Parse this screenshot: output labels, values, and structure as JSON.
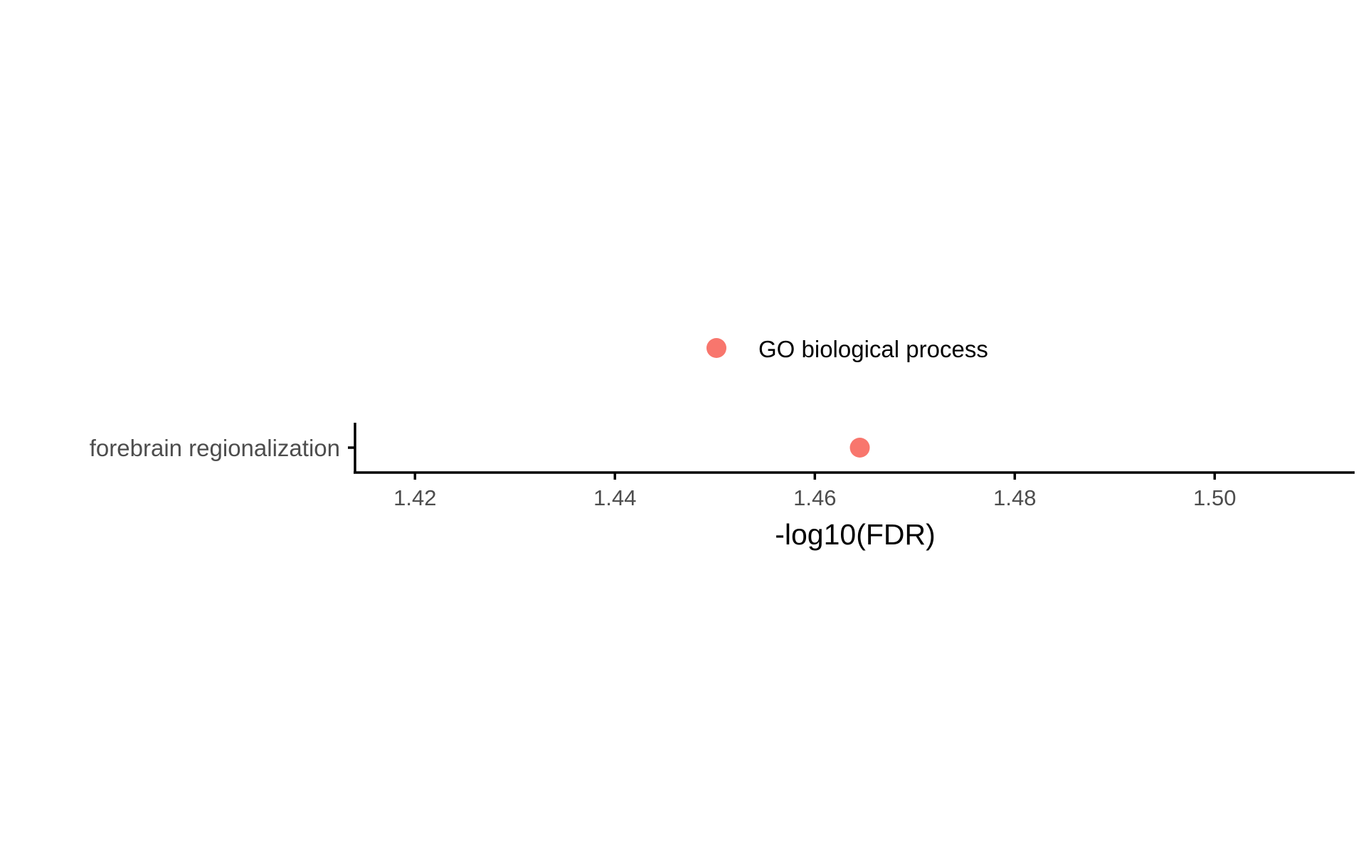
{
  "chart_data": {
    "type": "scatter",
    "xlabel": "-log10(FDR)",
    "ylabel": "",
    "xlim": [
      1.414,
      1.514
    ],
    "x_ticks": [
      "1.42",
      "1.44",
      "1.46",
      "1.48",
      "1.50"
    ],
    "categories": [
      "forebrain regionalization"
    ],
    "series": [
      {
        "name": "GO biological process",
        "color": "#F8766D",
        "points": [
          {
            "category": "forebrain regionalization",
            "x": 1.4645
          }
        ]
      }
    ],
    "legend": {
      "position": "top",
      "entries": [
        "GO biological process"
      ]
    },
    "grid": false
  }
}
